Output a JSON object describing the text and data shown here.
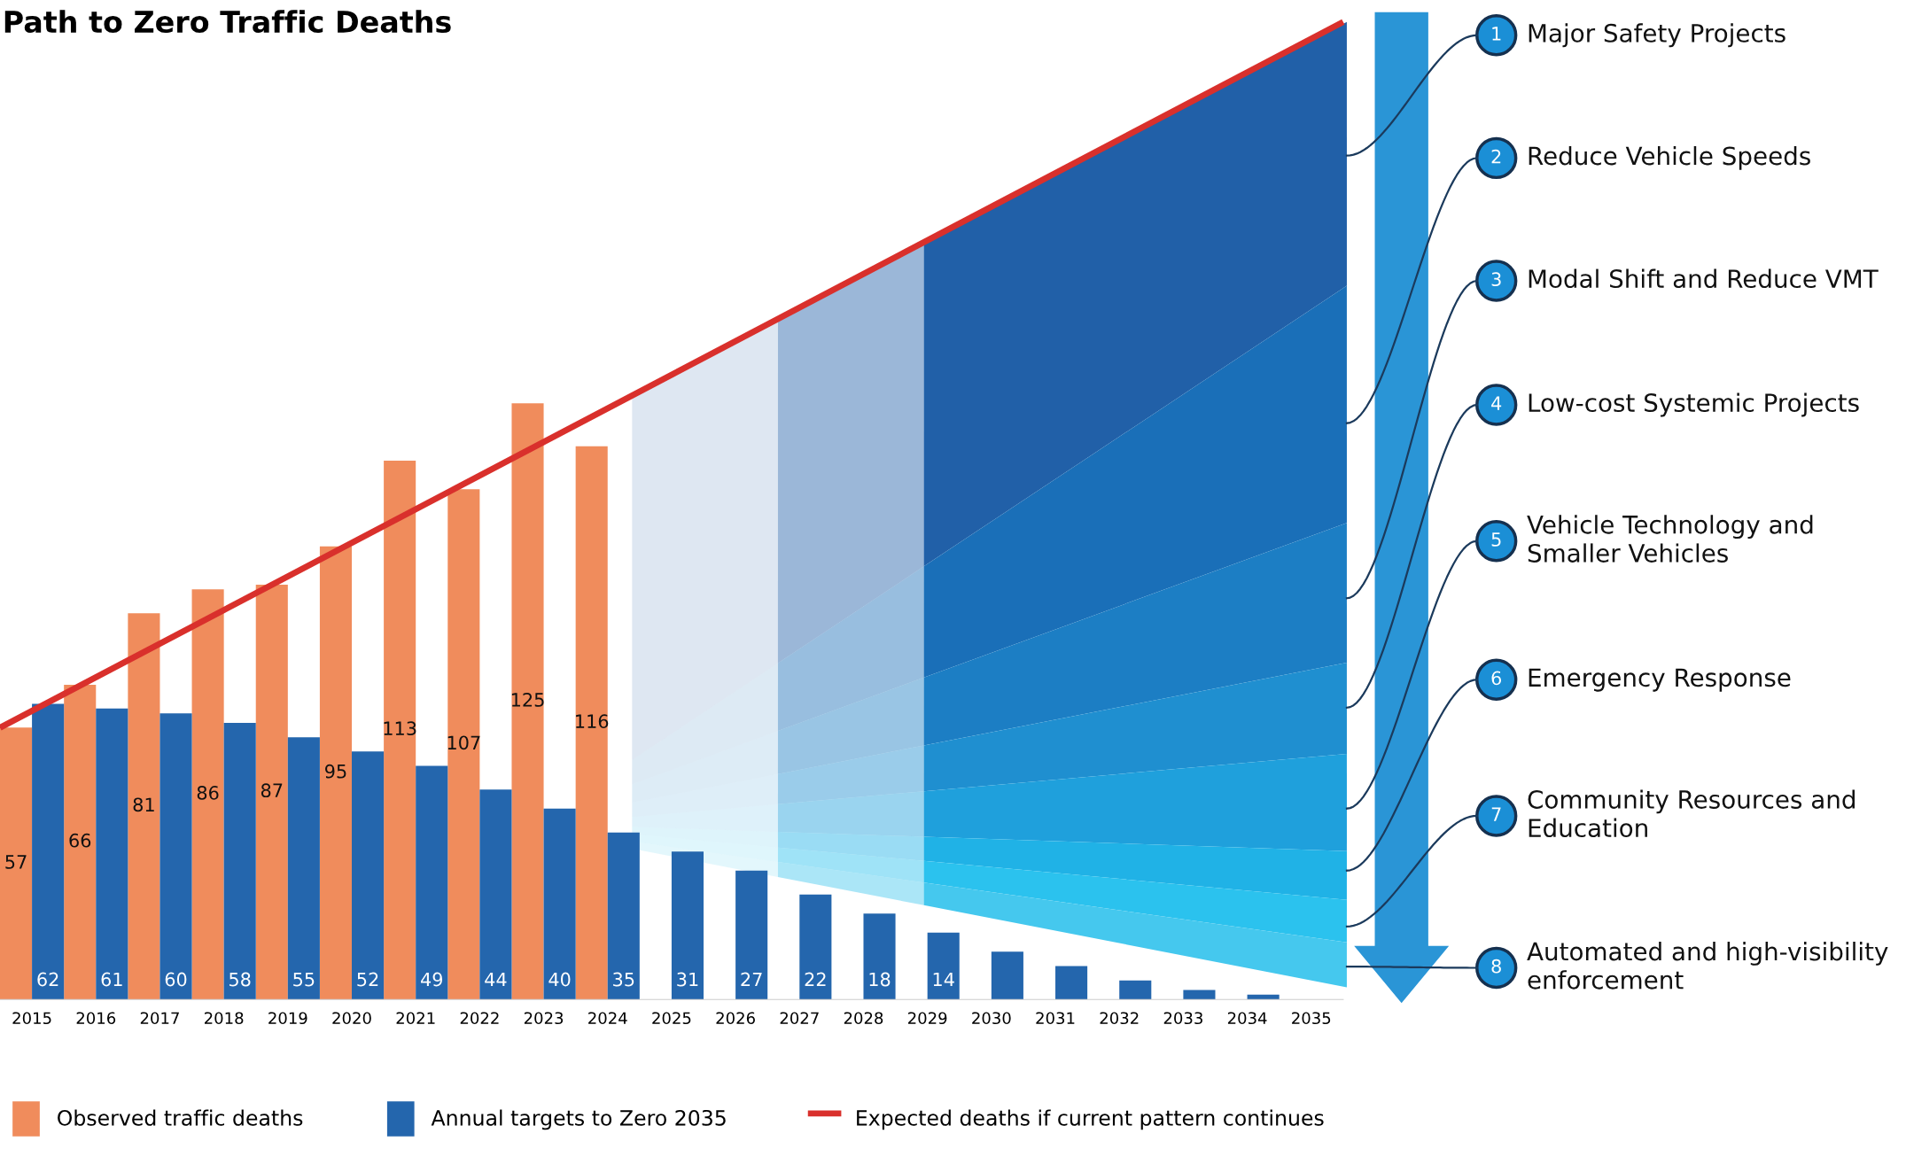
{
  "chart_data": {
    "type": "bar",
    "title": "Path to Zero Traffic Deaths",
    "x": [
      2015,
      2016,
      2017,
      2018,
      2019,
      2020,
      2021,
      2022,
      2023,
      2024,
      2025,
      2026,
      2027,
      2028,
      2029,
      2030,
      2031,
      2032,
      2033,
      2034,
      2035
    ],
    "xlim": [
      2014.5,
      2035.5
    ],
    "xticks": [
      2015,
      2016,
      2017,
      2018,
      2019,
      2020,
      2021,
      2022,
      2023,
      2024,
      2025,
      2026,
      2027,
      2028,
      2029,
      2030,
      2031,
      2032,
      2033,
      2034,
      2035
    ],
    "tick_labels": "x",
    "grid": false,
    "legend": "bottom",
    "series": [
      {
        "name": "Observed traffic deaths",
        "color": "#f08c5c",
        "values": [
          57,
          66,
          81,
          86,
          87,
          95,
          113,
          107,
          125,
          116,
          null,
          null,
          null,
          null,
          null,
          null,
          null,
          null,
          null,
          null,
          null
        ],
        "value_labels": [
          "57",
          "66",
          "81",
          "86",
          "87",
          "95",
          "113",
          "107",
          "125",
          "116",
          null,
          null,
          null,
          null,
          null,
          null,
          null,
          null,
          null,
          null,
          null
        ]
      },
      {
        "name": "Annual targets to Zero 2035",
        "color": "#2466ad",
        "values": [
          62,
          61,
          60,
          58,
          55,
          52,
          49,
          44,
          40,
          35,
          31,
          27,
          22,
          18,
          14,
          10,
          7,
          4,
          2,
          1,
          0
        ],
        "value_labels": [
          "62",
          "61",
          "60",
          "58",
          "55",
          "52",
          "49",
          "44",
          "40",
          "35",
          "31",
          "27",
          "22",
          "18",
          "14",
          null,
          null,
          null,
          null,
          null,
          null
        ]
      },
      {
        "name": "Expected deaths if current pattern continues",
        "type": "line",
        "color": "#d9302c",
        "x": [
          2014.5,
          2035.5
        ],
        "values": [
          57,
          205
        ]
      }
    ],
    "annotations": [
      "1",
      "Major Safety Projects",
      "2",
      "Reduce Vehicle Speeds",
      "3",
      "Modal Shift and Reduce VMT",
      "4",
      "Low-cost Systemic Projects",
      "5",
      "Vehicle Technology and\nSmaller Vehicles",
      "6",
      "Emergency Response",
      "7",
      "Community Resources and\nEducation",
      "8",
      "Automated and high-visibility\nenforcement"
    ]
  }
}
